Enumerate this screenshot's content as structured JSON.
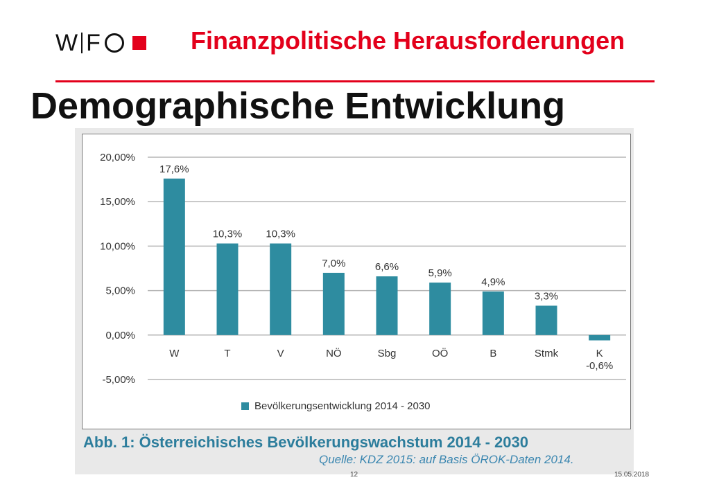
{
  "header": {
    "logo": {
      "letters_w": "W",
      "letters_f": "F"
    },
    "title": "Finanzpolitische Herausforderungen"
  },
  "page_title": "Demographische Entwicklung",
  "figure": {
    "caption": "Abb. 1: Österreichisches Bevölkerungswachstum 2014 - 2030",
    "source": "Quelle: KDZ 2015: auf Basis ÖROK-Daten 2014."
  },
  "footer": {
    "page_number": "12",
    "date": "15.05.2018"
  },
  "colors": {
    "accent": "#e3001b",
    "bar": "#2e8ca0",
    "caption": "#2c7d9c"
  },
  "chart_data": {
    "type": "bar",
    "categories": [
      "W",
      "T",
      "V",
      "NÖ",
      "Sbg",
      "OÖ",
      "B",
      "Stmk",
      "K"
    ],
    "values": [
      17.6,
      10.3,
      10.3,
      7.0,
      6.6,
      5.9,
      4.9,
      3.3,
      -0.6
    ],
    "data_labels": [
      "17,6%",
      "10,3%",
      "10,3%",
      "7,0%",
      "6,6%",
      "5,9%",
      "4,9%",
      "3,3%",
      "-0,6%"
    ],
    "series": [
      {
        "name": "Bevölkerungsentwicklung 2014 - 2030",
        "values": [
          17.6,
          10.3,
          10.3,
          7.0,
          6.6,
          5.9,
          4.9,
          3.3,
          -0.6
        ]
      }
    ],
    "yticks": [
      20,
      15,
      10,
      5,
      0,
      -5
    ],
    "ytick_labels": [
      "20,00%",
      "15,00%",
      "10,00%",
      "5,00%",
      "0,00%",
      "-5,00%"
    ],
    "ylim": [
      -5,
      20
    ],
    "grid": true,
    "legend_position": "bottom",
    "title": "",
    "xlabel": "",
    "ylabel": ""
  }
}
